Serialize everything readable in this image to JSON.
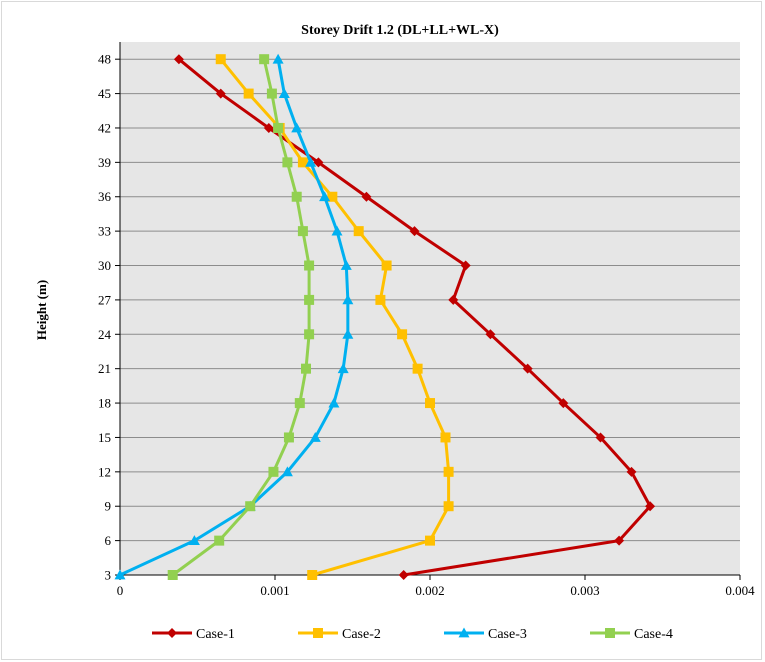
{
  "chart_data": {
    "type": "line",
    "title": "Storey Drift  1.2 (DL+LL+WL-X)",
    "xlabel": "",
    "ylabel": "Height (m)",
    "xlim": [
      0,
      0.004
    ],
    "x_ticks": [
      0,
      0.001,
      0.002,
      0.003,
      0.004
    ],
    "x_tick_labels": [
      "0",
      "0.001",
      "0.002",
      "0.003",
      "0.004"
    ],
    "ylim": [
      3,
      48
    ],
    "y_ticks": [
      3,
      6,
      9,
      12,
      15,
      18,
      21,
      24,
      27,
      30,
      33,
      36,
      39,
      42,
      45,
      48
    ],
    "grid": "horizontal",
    "legend_position": "bottom",
    "series": [
      {
        "name": "Case-1",
        "color": "#c00000",
        "marker": "diamond",
        "heights": [
          3,
          6,
          9,
          12,
          15,
          18,
          21,
          24,
          27,
          30,
          33,
          36,
          39,
          42,
          45,
          48
        ],
        "values": [
          0.00183,
          0.00322,
          0.00342,
          0.0033,
          0.0031,
          0.00286,
          0.00263,
          0.00239,
          0.00215,
          0.00223,
          0.0019,
          0.00159,
          0.00128,
          0.00096,
          0.00065,
          0.00038
        ]
      },
      {
        "name": "Case-2",
        "color": "#ffc000",
        "marker": "square",
        "heights": [
          3,
          6,
          9,
          12,
          15,
          18,
          21,
          24,
          27,
          30,
          33,
          36,
          39,
          42,
          45,
          48
        ],
        "values": [
          0.00124,
          0.002,
          0.00212,
          0.00212,
          0.0021,
          0.002,
          0.00192,
          0.00182,
          0.00168,
          0.00172,
          0.00154,
          0.00137,
          0.00118,
          0.00103,
          0.00083,
          0.00065
        ]
      },
      {
        "name": "Case-3",
        "color": "#00b0f0",
        "marker": "triangle",
        "heights": [
          3,
          6,
          9,
          12,
          15,
          18,
          21,
          24,
          27,
          30,
          33,
          36,
          39,
          42,
          45,
          48
        ],
        "values": [
          0.0,
          0.00048,
          0.00084,
          0.00108,
          0.00126,
          0.00138,
          0.00144,
          0.00147,
          0.00147,
          0.00146,
          0.0014,
          0.00132,
          0.00123,
          0.00114,
          0.00106,
          0.00102
        ]
      },
      {
        "name": "Case-4",
        "color": "#92d050",
        "marker": "square",
        "heights": [
          3,
          6,
          9,
          12,
          15,
          18,
          21,
          24,
          27,
          30,
          33,
          36,
          39,
          42,
          45,
          48
        ],
        "values": [
          0.00034,
          0.00064,
          0.00084,
          0.00099,
          0.00109,
          0.00116,
          0.0012,
          0.00122,
          0.00122,
          0.00122,
          0.00118,
          0.00114,
          0.00108,
          0.00102,
          0.00098,
          0.00093
        ]
      }
    ]
  }
}
